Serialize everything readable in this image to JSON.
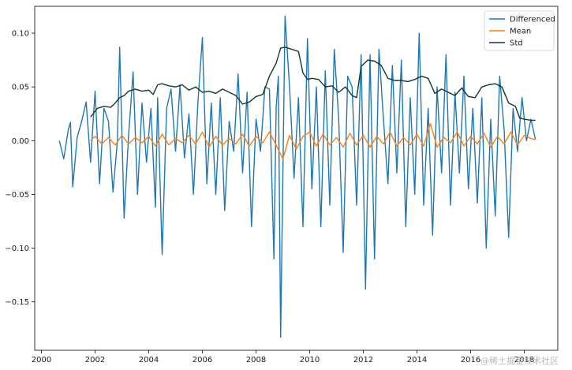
{
  "chart_data": {
    "type": "line",
    "title": "",
    "xlabel": "",
    "ylabel": "",
    "xlim": [
      1999.75,
      2019.25
    ],
    "ylim": [
      -0.195,
      0.125
    ],
    "x_ticks": [
      2000,
      2002,
      2004,
      2006,
      2008,
      2010,
      2012,
      2014,
      2016,
      2018
    ],
    "x_tick_labels": [
      "2000",
      "2002",
      "2004",
      "2006",
      "2008",
      "2010",
      "2012",
      "2014",
      "2016",
      "2018"
    ],
    "y_ticks": [
      -0.15,
      -0.1,
      -0.05,
      0.0,
      0.05,
      0.1
    ],
    "y_tick_labels": [
      "−0.15",
      "−0.10",
      "−0.05",
      "0.00",
      "0.05",
      "0.10"
    ],
    "grid": false,
    "legend_position": "top-right",
    "colors": {
      "differenced": "#1f77b4",
      "mean": "#ff7f0e",
      "std": "#0e3b2e"
    },
    "series": [
      {
        "name": "Differenced",
        "x": [
          2000.667,
          2000.833,
          2001.0,
          2001.083,
          2001.167,
          2001.333,
          2001.5,
          2001.667,
          2001.833,
          2002.0,
          2002.167,
          2002.333,
          2002.5,
          2002.667,
          2002.833,
          2002.917,
          2003.083,
          2003.25,
          2003.417,
          2003.583,
          2003.75,
          2003.917,
          2004.083,
          2004.25,
          2004.333,
          2004.5,
          2004.667,
          2004.833,
          2005.0,
          2005.167,
          2005.333,
          2005.5,
          2005.667,
          2005.833,
          2006.0,
          2006.167,
          2006.333,
          2006.5,
          2006.667,
          2006.833,
          2007.0,
          2007.167,
          2007.333,
          2007.5,
          2007.667,
          2007.833,
          2008.0,
          2008.167,
          2008.333,
          2008.5,
          2008.667,
          2008.75,
          2008.833,
          2008.917,
          2009.083,
          2009.25,
          2009.417,
          2009.583,
          2009.75,
          2009.917,
          2010.083,
          2010.25,
          2010.417,
          2010.583,
          2010.75,
          2010.917,
          2011.083,
          2011.25,
          2011.417,
          2011.583,
          2011.75,
          2011.917,
          2012.083,
          2012.25,
          2012.417,
          2012.583,
          2012.75,
          2012.917,
          2013.083,
          2013.25,
          2013.417,
          2013.583,
          2013.75,
          2013.917,
          2014.083,
          2014.25,
          2014.417,
          2014.583,
          2014.75,
          2014.917,
          2015.083,
          2015.25,
          2015.417,
          2015.583,
          2015.75,
          2015.917,
          2016.083,
          2016.25,
          2016.417,
          2016.583,
          2016.75,
          2016.917,
          2017.083,
          2017.25,
          2017.417,
          2017.583,
          2017.75,
          2017.917,
          2018.083,
          2018.25,
          2018.417
        ],
        "values": [
          0.0,
          -0.017,
          0.01,
          0.017,
          -0.043,
          0.003,
          0.018,
          0.036,
          -0.02,
          0.046,
          -0.04,
          0.03,
          0.018,
          -0.048,
          0.0,
          0.087,
          -0.072,
          0.005,
          0.064,
          -0.05,
          0.035,
          -0.02,
          0.03,
          -0.062,
          0.04,
          -0.106,
          0.03,
          0.048,
          -0.01,
          0.052,
          -0.016,
          0.025,
          -0.05,
          0.035,
          0.096,
          -0.04,
          0.035,
          -0.05,
          0.04,
          -0.065,
          0.018,
          -0.01,
          0.062,
          -0.03,
          0.045,
          -0.08,
          0.02,
          -0.01,
          0.05,
          0.048,
          -0.11,
          0.03,
          0.06,
          -0.183,
          0.116,
          0.05,
          -0.035,
          0.04,
          -0.08,
          0.095,
          -0.045,
          0.05,
          -0.08,
          0.065,
          -0.06,
          0.085,
          0.02,
          -0.104,
          0.06,
          0.05,
          -0.06,
          0.08,
          -0.138,
          0.08,
          -0.11,
          0.085,
          0.02,
          -0.04,
          0.07,
          -0.03,
          0.075,
          -0.08,
          0.04,
          -0.05,
          0.1,
          -0.06,
          0.03,
          -0.088,
          0.05,
          -0.03,
          0.08,
          -0.06,
          0.045,
          -0.03,
          0.06,
          -0.045,
          0.03,
          -0.058,
          0.04,
          -0.1,
          0.02,
          -0.07,
          0.06,
          0.01,
          -0.09,
          0.03,
          -0.01,
          0.04,
          0.0,
          0.02,
          0.001
        ]
      },
      {
        "name": "Mean",
        "x": [
          2001.833,
          2002.0,
          2002.25,
          2002.5,
          2002.75,
          2003.0,
          2003.25,
          2003.5,
          2003.75,
          2004.0,
          2004.25,
          2004.5,
          2004.75,
          2005.0,
          2005.25,
          2005.5,
          2005.75,
          2006.0,
          2006.25,
          2006.5,
          2006.75,
          2007.0,
          2007.25,
          2007.5,
          2007.75,
          2008.0,
          2008.25,
          2008.5,
          2008.75,
          2009.0,
          2009.25,
          2009.5,
          2009.75,
          2010.0,
          2010.25,
          2010.5,
          2010.75,
          2011.0,
          2011.25,
          2011.5,
          2011.75,
          2012.0,
          2012.25,
          2012.5,
          2012.75,
          2013.0,
          2013.25,
          2013.5,
          2013.75,
          2014.0,
          2014.25,
          2014.5,
          2014.75,
          2015.0,
          2015.25,
          2015.5,
          2015.75,
          2016.0,
          2016.25,
          2016.5,
          2016.75,
          2017.0,
          2017.25,
          2017.5,
          2017.75,
          2018.0,
          2018.25,
          2018.417
        ],
        "values": [
          0.0,
          0.004,
          -0.003,
          0.003,
          -0.004,
          0.005,
          -0.003,
          0.003,
          -0.002,
          0.004,
          -0.005,
          0.006,
          -0.004,
          0.002,
          -0.002,
          0.005,
          -0.003,
          0.008,
          -0.006,
          0.004,
          -0.004,
          0.002,
          -0.003,
          0.006,
          -0.005,
          0.004,
          -0.002,
          0.008,
          -0.004,
          -0.017,
          0.005,
          -0.008,
          0.004,
          0.008,
          -0.005,
          0.006,
          -0.004,
          0.003,
          -0.006,
          0.007,
          -0.004,
          0.005,
          -0.006,
          0.004,
          -0.003,
          0.008,
          -0.005,
          0.003,
          -0.004,
          0.006,
          -0.005,
          0.016,
          -0.006,
          0.003,
          -0.002,
          0.008,
          -0.005,
          0.004,
          -0.003,
          0.007,
          -0.006,
          0.004,
          -0.003,
          0.008,
          -0.004,
          0.005,
          0.002,
          0.001
        ]
      },
      {
        "name": "Std",
        "x": [
          2001.833,
          2002.083,
          2002.333,
          2002.583,
          2002.75,
          2002.917,
          2003.083,
          2003.25,
          2003.5,
          2003.75,
          2004.0,
          2004.167,
          2004.333,
          2004.5,
          2004.75,
          2005.0,
          2005.25,
          2005.5,
          2005.75,
          2006.0,
          2006.25,
          2006.5,
          2006.75,
          2007.0,
          2007.25,
          2007.5,
          2007.75,
          2008.0,
          2008.25,
          2008.5,
          2008.75,
          2008.917,
          2009.083,
          2009.333,
          2009.583,
          2009.75,
          2009.917,
          2010.083,
          2010.333,
          2010.583,
          2010.833,
          2011.083,
          2011.333,
          2011.583,
          2011.75,
          2011.917,
          2012.167,
          2012.417,
          2012.667,
          2012.917,
          2013.167,
          2013.417,
          2013.667,
          2013.917,
          2014.167,
          2014.417,
          2014.667,
          2014.917,
          2015.167,
          2015.417,
          2015.667,
          2015.917,
          2016.167,
          2016.417,
          2016.667,
          2016.917,
          2017.167,
          2017.417,
          2017.667,
          2017.833,
          2018.0,
          2018.25,
          2018.417
        ],
        "values": [
          0.022,
          0.03,
          0.032,
          0.031,
          0.035,
          0.04,
          0.042,
          0.046,
          0.048,
          0.046,
          0.047,
          0.043,
          0.052,
          0.053,
          0.051,
          0.05,
          0.052,
          0.047,
          0.05,
          0.045,
          0.046,
          0.044,
          0.048,
          0.045,
          0.042,
          0.034,
          0.036,
          0.041,
          0.043,
          0.06,
          0.072,
          0.086,
          0.087,
          0.085,
          0.083,
          0.063,
          0.057,
          0.058,
          0.057,
          0.05,
          0.051,
          0.045,
          0.05,
          0.042,
          0.04,
          0.069,
          0.075,
          0.074,
          0.07,
          0.058,
          0.056,
          0.056,
          0.055,
          0.057,
          0.06,
          0.058,
          0.044,
          0.048,
          0.045,
          0.042,
          0.049,
          0.041,
          0.04,
          0.05,
          0.052,
          0.053,
          0.05,
          0.035,
          0.032,
          0.021,
          0.02,
          0.019,
          0.019
        ]
      }
    ]
  }
}
